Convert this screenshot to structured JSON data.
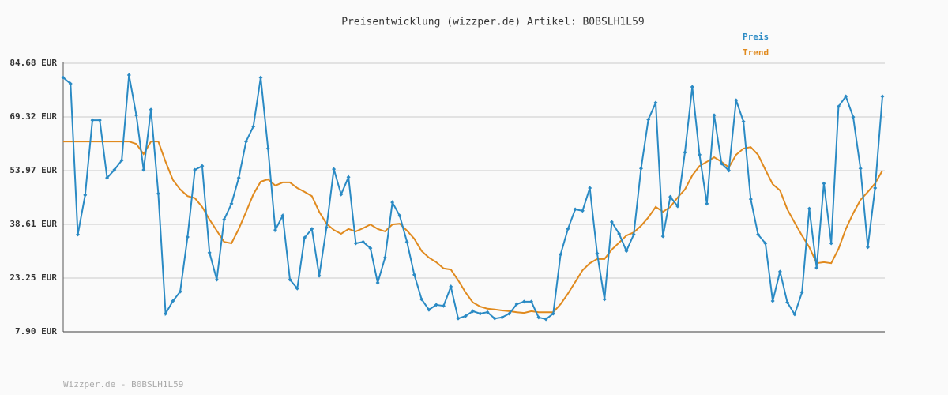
{
  "chart_data": {
    "type": "line",
    "title": "Preisentwicklung (wizzper.de) Artikel: B0BSLH1L59",
    "footer": "Wizzper.de - B0BSLH1L59",
    "ylim": [
      7.9,
      84.68
    ],
    "yticks": [
      {
        "value": 7.9,
        "label": "7.90 EUR"
      },
      {
        "value": 23.25,
        "label": "23.25 EUR"
      },
      {
        "value": 38.61,
        "label": "38.61 EUR"
      },
      {
        "value": 53.97,
        "label": "53.97 EUR"
      },
      {
        "value": 69.32,
        "label": "69.32 EUR"
      },
      {
        "value": 84.68,
        "label": "84.68 EUR"
      }
    ],
    "grid": true,
    "legend": "top-right",
    "series": [
      {
        "name": "Preis",
        "color": "#2a8ac4",
        "markers": true,
        "values": [
          80.6,
          78.8,
          35.7,
          47.0,
          68.4,
          68.4,
          51.9,
          54.2,
          56.9,
          81.3,
          69.8,
          54.2,
          71.4,
          47.4,
          13.1,
          16.7,
          19.4,
          35.0,
          54.2,
          55.3,
          30.5,
          22.8,
          40.0,
          44.5,
          51.9,
          62.3,
          66.6,
          80.6,
          60.3,
          37.0,
          41.1,
          22.8,
          20.3,
          34.8,
          37.3,
          23.9,
          37.7,
          54.4,
          47.2,
          52.1,
          33.2,
          33.6,
          31.8,
          21.9,
          29.1,
          44.9,
          41.1,
          33.6,
          24.2,
          17.2,
          14.2,
          15.6,
          15.3,
          20.8,
          11.7,
          12.4,
          13.8,
          13.1,
          13.5,
          11.7,
          12.0,
          13.1,
          15.8,
          16.5,
          16.5,
          12.0,
          11.5,
          13.1,
          30.0,
          37.3,
          42.9,
          42.5,
          49.0,
          30.3,
          17.2,
          39.3,
          35.9,
          31.0,
          35.7,
          54.6,
          68.6,
          73.4,
          35.2,
          46.5,
          43.8,
          59.2,
          77.9,
          58.5,
          44.5,
          69.8,
          56.0,
          54.0,
          74.1,
          68.0,
          45.8,
          35.7,
          33.2,
          16.7,
          25.1,
          16.3,
          12.9,
          19.2,
          43.1,
          26.2,
          50.3,
          33.2,
          72.3,
          75.2,
          69.3,
          54.6,
          32.1,
          49.0,
          75.2
        ]
      },
      {
        "name": "Trend",
        "color": "#e08a1e",
        "markers": false,
        "values": [
          62.3,
          62.3,
          62.3,
          62.3,
          62.3,
          62.3,
          62.3,
          62.3,
          62.3,
          62.3,
          61.6,
          58.7,
          62.3,
          62.3,
          56.5,
          51.3,
          48.6,
          46.7,
          46.1,
          43.6,
          40.0,
          36.8,
          33.6,
          33.2,
          37.3,
          42.2,
          47.2,
          50.8,
          51.5,
          49.7,
          50.6,
          50.6,
          49.0,
          47.9,
          46.7,
          42.2,
          38.8,
          37.0,
          35.9,
          37.3,
          36.6,
          37.5,
          38.6,
          37.3,
          36.6,
          38.6,
          38.8,
          36.8,
          34.5,
          31.0,
          29.1,
          27.8,
          26.0,
          25.7,
          22.6,
          19.2,
          16.3,
          15.1,
          14.5,
          14.3,
          14.0,
          13.8,
          13.5,
          13.3,
          13.8,
          13.5,
          13.5,
          13.5,
          15.8,
          18.8,
          22.1,
          25.5,
          27.5,
          28.7,
          28.7,
          31.4,
          33.4,
          35.4,
          36.3,
          38.2,
          40.6,
          43.6,
          42.2,
          43.6,
          46.3,
          48.6,
          52.6,
          55.3,
          56.5,
          57.8,
          56.5,
          54.9,
          58.5,
          60.3,
          60.7,
          58.5,
          54.2,
          50.1,
          48.3,
          42.9,
          39.1,
          35.4,
          32.1,
          27.5,
          27.8,
          27.5,
          31.6,
          37.3,
          41.8,
          45.6,
          47.9,
          50.3,
          54.0
        ]
      }
    ]
  }
}
